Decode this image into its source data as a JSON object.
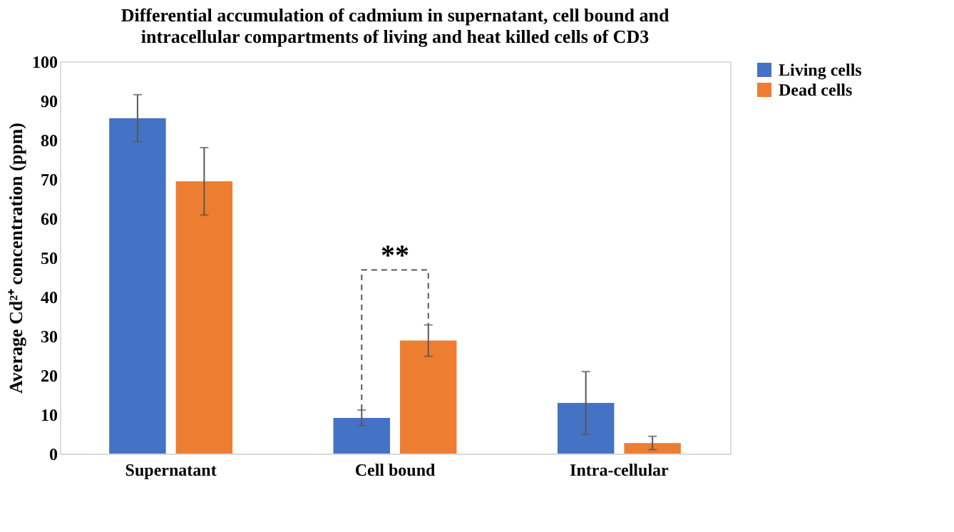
{
  "chart_data": {
    "type": "bar",
    "title": "Differential accumulation of cadmium in supernatant, cell bound and intracellular compartments of living and heat killed cells of CD3",
    "ylabel": "Average Cd²⁺ concentration (ppm)",
    "categories": [
      "Supernatant",
      "Cell bound",
      "Intra-cellular"
    ],
    "series": [
      {
        "name": "Living cells",
        "color": "#4472c4",
        "values": [
          85.5,
          9.1,
          12.9
        ],
        "errors": [
          6,
          2,
          8
        ]
      },
      {
        "name": "Dead cells",
        "color": "#ed7d31",
        "values": [
          69.4,
          28.8,
          2.7
        ],
        "errors": [
          8.6,
          4,
          1.7
        ]
      }
    ],
    "ylim": [
      0,
      100
    ],
    "yticks": [
      0,
      10,
      20,
      30,
      40,
      50,
      60,
      70,
      80,
      90,
      100
    ],
    "grid": false,
    "legend": "right",
    "annotations": [
      "**"
    ]
  }
}
